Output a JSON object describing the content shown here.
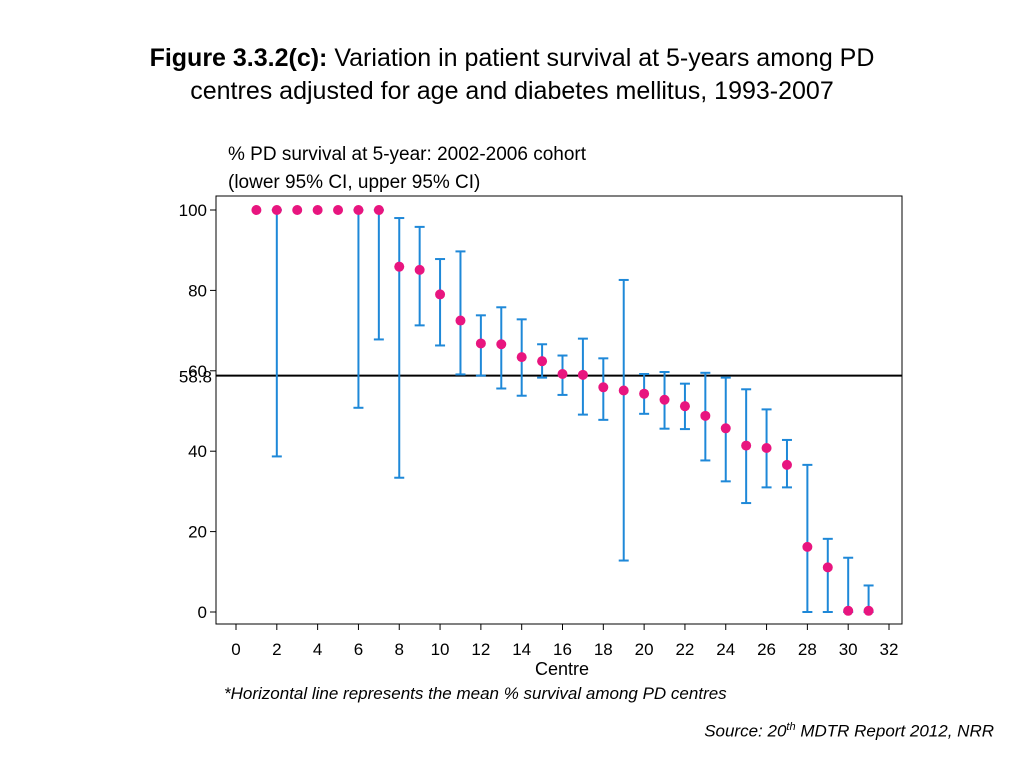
{
  "slide": {
    "title_bold": "Figure 3.3.2(c):",
    "title_line1": " Variation in patient survival at 5-years among PD",
    "title_line2": "centres adjusted for age and diabetes mellitus, 1993-2007",
    "footnote": "*Horizontal line represents the mean % survival among PD centres",
    "source_prefix": "Source: 20",
    "source_sup": "th",
    "source_suffix": " MDTR Report 2012, NRR"
  },
  "chart_data": {
    "type": "scatter",
    "title": "",
    "ylabel_line1": "% PD survival at 5-year: 2002-2006 cohort",
    "ylabel_line2": "(lower 95% CI, upper 95% CI)",
    "xlabel": "Centre",
    "xlim": [
      0,
      32
    ],
    "ylim": [
      0,
      100
    ],
    "xticks": [
      0,
      2,
      4,
      6,
      8,
      10,
      12,
      14,
      16,
      18,
      20,
      22,
      24,
      26,
      28,
      30,
      32
    ],
    "yticks": [
      0,
      20,
      40,
      60,
      80,
      100
    ],
    "reference_line": {
      "value": 58.8,
      "label": "58.8"
    },
    "grid": false,
    "colors": {
      "point": "#e8157f",
      "ci": "#1e88d8",
      "axis": "#000000",
      "refline": "#000000"
    },
    "points": [
      {
        "x": 1,
        "y": 100
      },
      {
        "x": 2,
        "y": 100,
        "lower": 38.7,
        "upper": 100
      },
      {
        "x": 3,
        "y": 100
      },
      {
        "x": 4,
        "y": 100
      },
      {
        "x": 5,
        "y": 100
      },
      {
        "x": 6,
        "y": 100,
        "lower": 50.8,
        "upper": 100
      },
      {
        "x": 7,
        "y": 100,
        "lower": 67.8,
        "upper": 100
      },
      {
        "x": 8,
        "y": 85.9,
        "lower": 33.4,
        "upper": 98.0
      },
      {
        "x": 9,
        "y": 85.1,
        "lower": 71.3,
        "upper": 95.8
      },
      {
        "x": 10,
        "y": 79.0,
        "lower": 66.3,
        "upper": 87.8
      },
      {
        "x": 11,
        "y": 72.5,
        "lower": 59.1,
        "upper": 89.7
      },
      {
        "x": 12,
        "y": 66.8,
        "lower": 58.8,
        "upper": 73.8
      },
      {
        "x": 13,
        "y": 66.6,
        "lower": 55.6,
        "upper": 75.8
      },
      {
        "x": 14,
        "y": 63.4,
        "lower": 53.8,
        "upper": 72.8
      },
      {
        "x": 15,
        "y": 62.4,
        "lower": 58.3,
        "upper": 66.6
      },
      {
        "x": 16,
        "y": 59.2,
        "lower": 54.0,
        "upper": 63.8
      },
      {
        "x": 17,
        "y": 59.0,
        "lower": 49.1,
        "upper": 68.0
      },
      {
        "x": 18,
        "y": 55.9,
        "lower": 47.8,
        "upper": 63.1
      },
      {
        "x": 19,
        "y": 55.1,
        "lower": 12.8,
        "upper": 82.6
      },
      {
        "x": 20,
        "y": 54.3,
        "lower": 49.3,
        "upper": 59.2
      },
      {
        "x": 21,
        "y": 52.8,
        "lower": 45.6,
        "upper": 59.7
      },
      {
        "x": 22,
        "y": 51.2,
        "lower": 45.5,
        "upper": 56.8
      },
      {
        "x": 23,
        "y": 48.8,
        "lower": 37.7,
        "upper": 59.5
      },
      {
        "x": 24,
        "y": 45.7,
        "lower": 32.5,
        "upper": 58.3
      },
      {
        "x": 25,
        "y": 41.4,
        "lower": 27.1,
        "upper": 55.4
      },
      {
        "x": 26,
        "y": 40.8,
        "lower": 31.0,
        "upper": 50.4
      },
      {
        "x": 27,
        "y": 36.6,
        "lower": 31.0,
        "upper": 42.8
      },
      {
        "x": 28,
        "y": 16.2,
        "lower": 0,
        "upper": 36.6
      },
      {
        "x": 29,
        "y": 11.1,
        "lower": 0,
        "upper": 18.2
      },
      {
        "x": 30,
        "y": 0.3,
        "lower": 0,
        "upper": 13.5
      },
      {
        "x": 31,
        "y": 0.3,
        "lower": 0,
        "upper": 6.6
      }
    ]
  }
}
